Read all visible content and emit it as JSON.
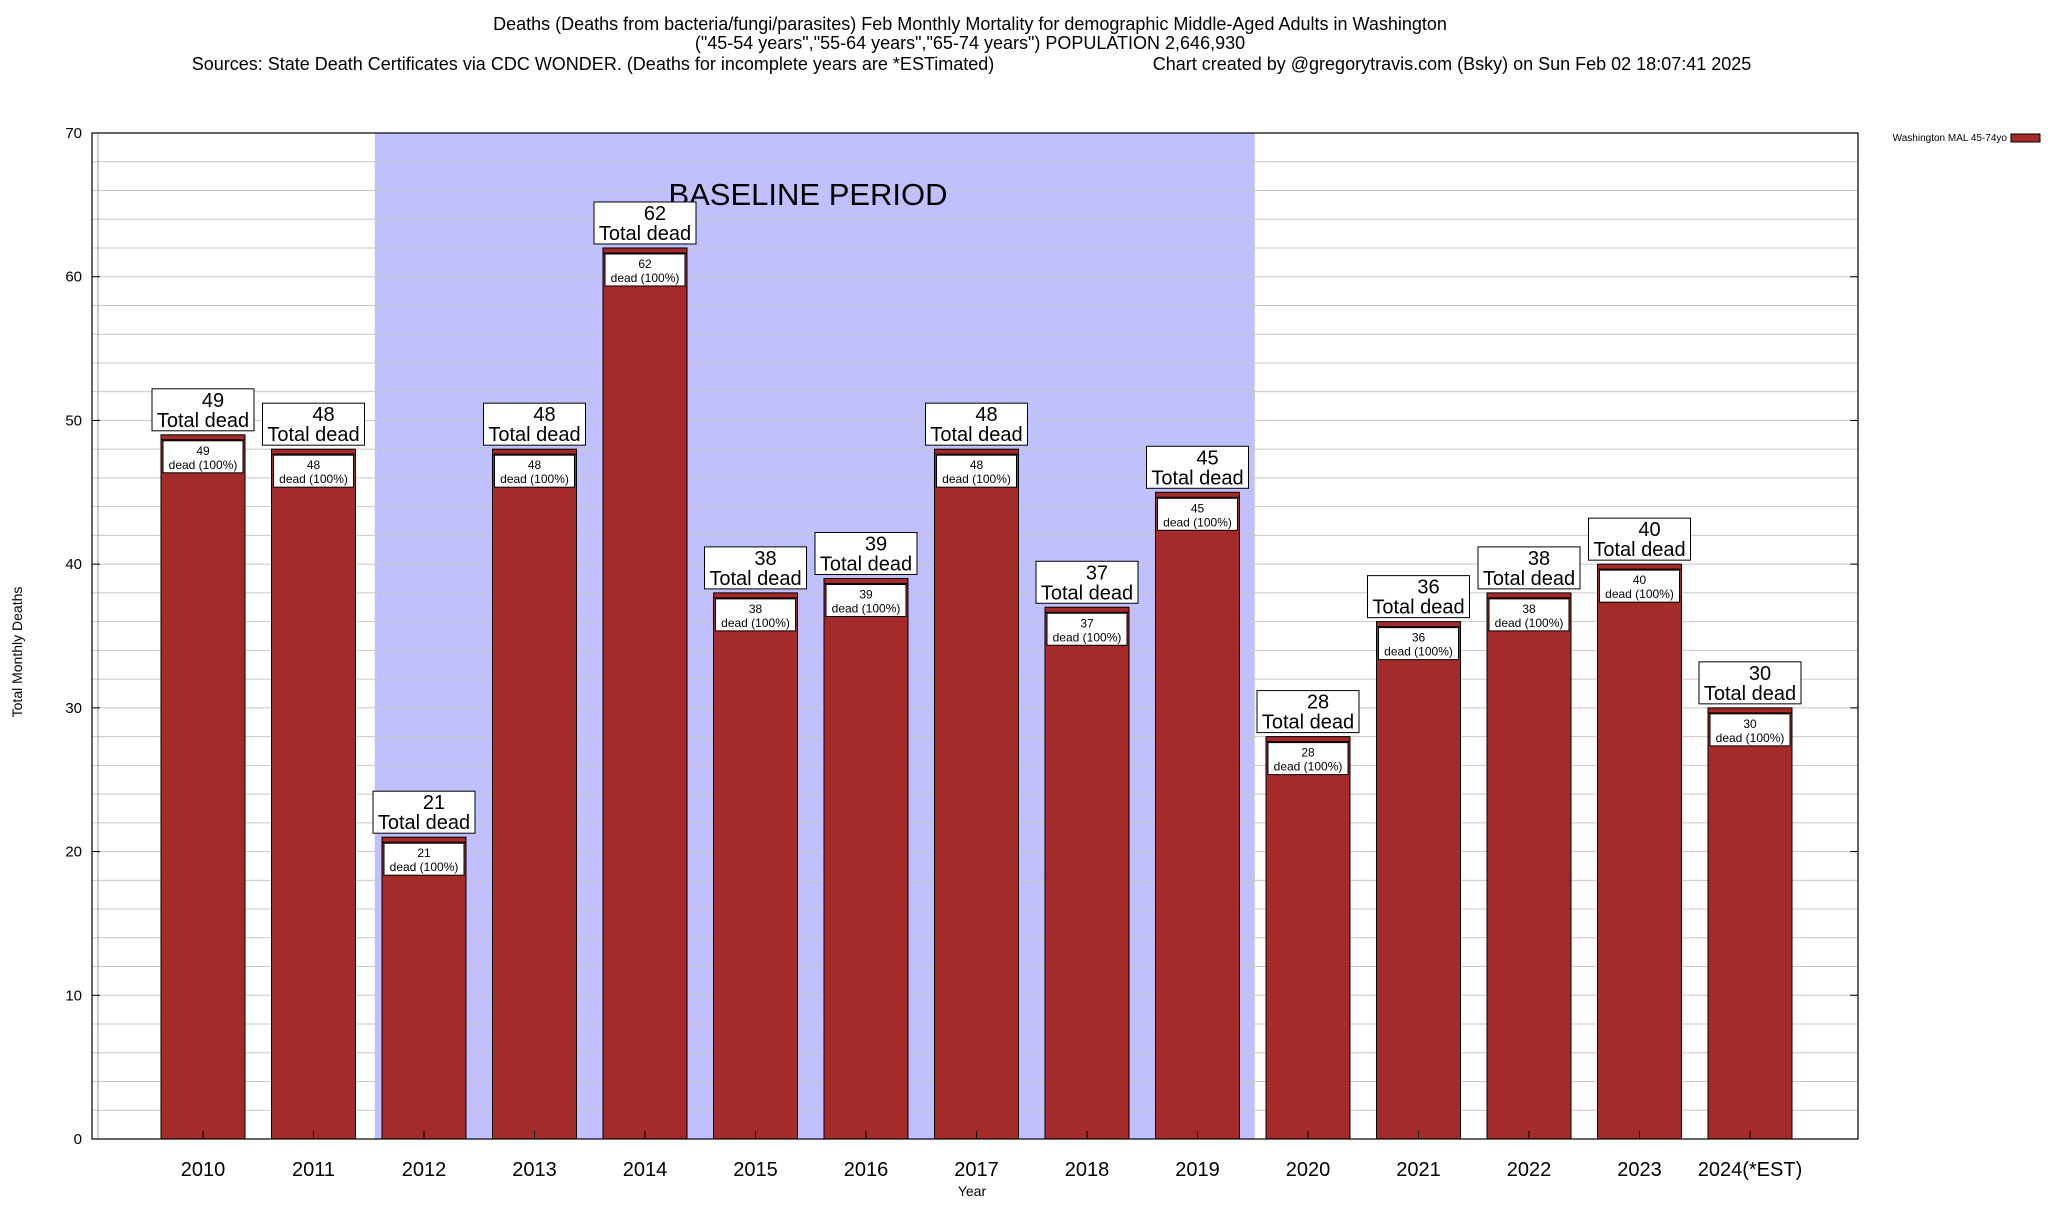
{
  "chart_data": {
    "type": "bar",
    "title_lines": [
      "Deaths (Deaths from bacteria/fungi/parasites) Feb Monthly Mortality for demographic Middle-Aged Adults in Washington",
      "(\"45-54 years\",\"55-64 years\",\"65-74 years\") POPULATION 2,646,930"
    ],
    "sources_text": "Sources: State Death Certificates via CDC WONDER. (Deaths for incomplete years are *ESTimated)",
    "credit_text": "Chart created by @gregorytravis.com (Bsky) on Sun Feb 02 18:07:41 2025",
    "xlabel": "Year",
    "ylabel": "Total Monthly Deaths",
    "ylim": [
      0,
      70
    ],
    "yticks": [
      0,
      10,
      20,
      30,
      40,
      50,
      60,
      70
    ],
    "grid": true,
    "legend_position": "top-right",
    "baseline_label": "BASELINE PERIOD",
    "baseline_range": [
      "2012",
      "2019"
    ],
    "categories": [
      "2010",
      "2011",
      "2012",
      "2013",
      "2014",
      "2015",
      "2016",
      "2017",
      "2018",
      "2019",
      "2020",
      "2021",
      "2022",
      "2023",
      "2024(*EST)"
    ],
    "series": [
      {
        "name": "Washington MAL 45-74yo",
        "color": "#a52a2a",
        "values": [
          49,
          48,
          21,
          48,
          62,
          38,
          39,
          48,
          37,
          45,
          28,
          36,
          38,
          40,
          30
        ]
      }
    ],
    "top_label_suffix": "Total dead",
    "inner_label_suffix": "dead (100%)",
    "colors": {
      "bar": "#a52a2a",
      "baseline_band": "#c0c0ff",
      "grid": "#c8c8c8"
    }
  }
}
